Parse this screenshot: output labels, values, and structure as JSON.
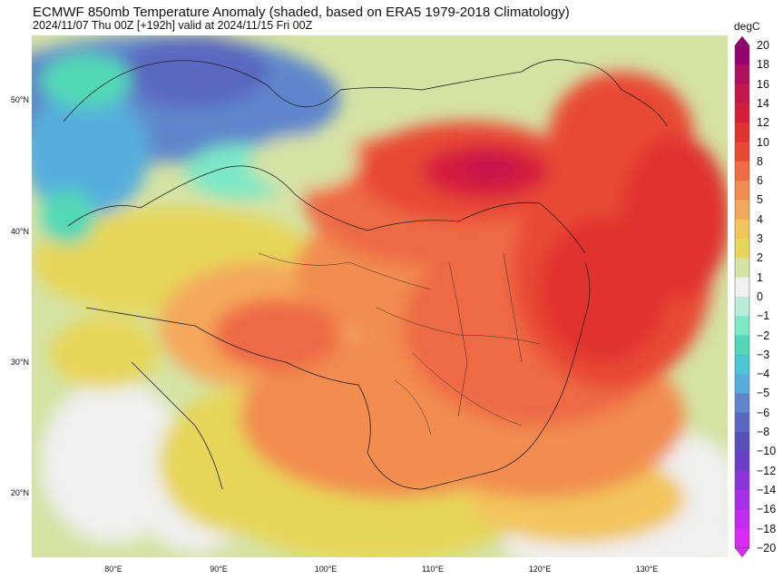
{
  "header": {
    "title": "ECMWF 850mb Temperature Anomaly (shaded, based on ERA5 1979-2018 Climatology)",
    "subtitle": "2024/11/07 Thu 00Z [+192h] valid at 2024/11/15 Fri 00Z"
  },
  "map": {
    "lat_labels": [
      "50°N",
      "40°N",
      "30°N",
      "20°N"
    ],
    "lon_labels": [
      "80°E",
      "90°E",
      "100°E",
      "110°E",
      "120°E",
      "130°E"
    ]
  },
  "colorbar": {
    "unit": "degC",
    "levels": [
      "20",
      "18",
      "16",
      "14",
      "12",
      "10",
      "8",
      "6",
      "5",
      "4",
      "3",
      "2",
      "1",
      "0",
      "−1",
      "−2",
      "−3",
      "−4",
      "−5",
      "−6",
      "−8",
      "−10",
      "−12",
      "−14",
      "−16",
      "−18",
      "−20"
    ],
    "colors": [
      "#94006e",
      "#b0115e",
      "#c4174d",
      "#d41f3c",
      "#e0322e",
      "#e84a36",
      "#ee6b44",
      "#f28c50",
      "#f4a85c",
      "#f2c55c",
      "#e6d65a",
      "#d5e2a4",
      "#f0f0f0",
      "#b8eed8",
      "#7ee8c6",
      "#52d8b6",
      "#4cc6d2",
      "#56aedc",
      "#5f86cc",
      "#5a68c0",
      "#5a4eb8",
      "#6a3ec6",
      "#8a34d8",
      "#a82ee6",
      "#c22cf0",
      "#d82cf6"
    ]
  }
}
